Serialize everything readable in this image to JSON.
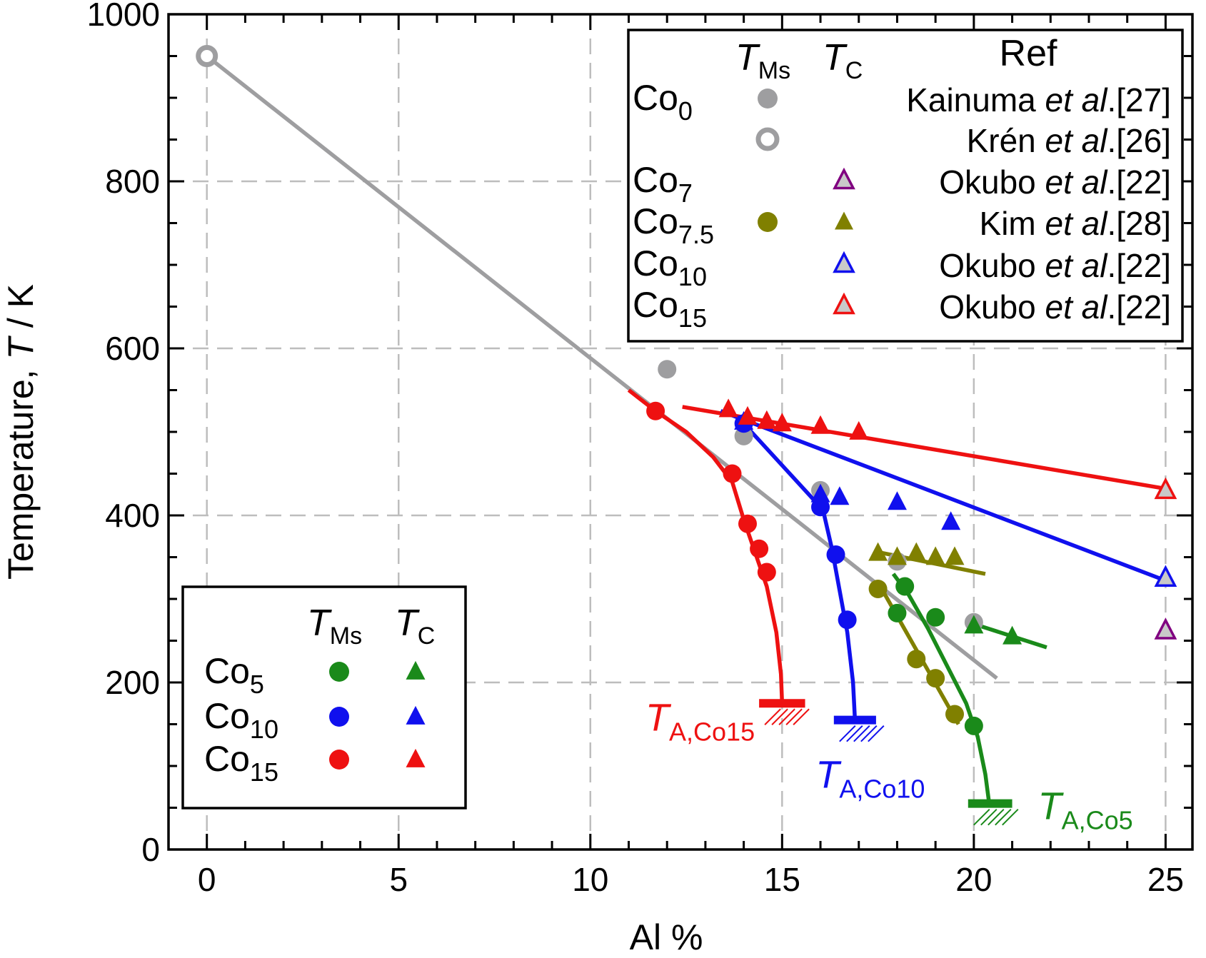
{
  "chart_data": {
    "type": "scatter",
    "xlabel": "Al %",
    "ylabel": "Temperature, T / K",
    "ylabel_prefix": "Temperature, ",
    "ylabel_var": "T",
    "ylabel_suffix": " / K",
    "xlim": [
      -1,
      25.7
    ],
    "ylim": [
      0,
      1000
    ],
    "x_ticks": [
      0,
      5,
      10,
      15,
      20,
      25
    ],
    "x_tick_labels": [
      "0",
      "5",
      "10",
      "15",
      "20",
      "25"
    ],
    "y_ticks": [
      0,
      200,
      400,
      600,
      800,
      1000
    ],
    "y_tick_labels": [
      "0",
      "200",
      "400",
      "600",
      "800",
      "1000"
    ],
    "grid": true,
    "colors": {
      "gray": "#9e9ea0",
      "olive": "#808000",
      "green": "#1a8a1a",
      "blue": "#1010ee",
      "red": "#ee1111",
      "purple": "#800080"
    },
    "lines": [
      {
        "name": "Co0 fit",
        "color": "gray",
        "x": [
          0,
          20.6
        ],
        "y": [
          950,
          205
        ]
      },
      {
        "name": "Co15 TC fit",
        "color": "red",
        "x": [
          12.4,
          25
        ],
        "y": [
          530,
          432
        ]
      },
      {
        "name": "Co10 TC fit",
        "color": "blue",
        "x": [
          13.4,
          25
        ],
        "y": [
          525,
          322
        ]
      },
      {
        "name": "Co7.5 TC fit",
        "color": "olive",
        "x": [
          17.4,
          20.3
        ],
        "y": [
          357,
          330
        ]
      },
      {
        "name": "Co5 TC fit",
        "color": "green",
        "x": [
          20,
          21.9
        ],
        "y": [
          270,
          242
        ]
      },
      {
        "name": "Co7.5 TMs fit",
        "color": "olive",
        "x": [
          17.5,
          19.6
        ],
        "y": [
          320,
          150
        ]
      },
      {
        "name": "Co15 TMs curve",
        "color": "red",
        "x": [
          11,
          11.7,
          12.5,
          13.2,
          13.7,
          14.0,
          14.3,
          14.6,
          14.85,
          14.97,
          15.0
        ],
        "y": [
          550,
          525,
          500,
          470,
          440,
          395,
          355,
          315,
          260,
          210,
          175
        ]
      },
      {
        "name": "Co10 TMs curve",
        "color": "blue",
        "x": [
          14.0,
          15.0,
          15.8,
          16.1,
          16.3,
          16.5,
          16.7,
          16.85,
          16.9
        ],
        "y": [
          510,
          460,
          420,
          400,
          360,
          310,
          260,
          200,
          155
        ]
      },
      {
        "name": "Co5 TMs curve",
        "color": "green",
        "x": [
          17.9,
          18.3,
          18.8,
          19.3,
          19.8,
          20.1,
          20.3,
          20.4
        ],
        "y": [
          330,
          305,
          265,
          220,
          175,
          135,
          90,
          55
        ]
      }
    ],
    "series": [
      {
        "name": "Co0 TMs Kainuma",
        "marker": "circle",
        "fill": true,
        "color": "gray",
        "x": [
          12,
          14,
          16,
          18,
          20
        ],
        "y": [
          575,
          495,
          430,
          345,
          272
        ]
      },
      {
        "name": "Co0 TMs Kren",
        "marker": "circle",
        "fill": false,
        "color": "gray",
        "x": [
          0
        ],
        "y": [
          950
        ]
      },
      {
        "name": "Co7 TC Okubo",
        "marker": "triangle",
        "fill": false,
        "color": "purple",
        "x": [
          25
        ],
        "y": [
          262
        ]
      },
      {
        "name": "Co7.5 TMs Kim",
        "marker": "circle",
        "fill": true,
        "color": "olive",
        "x": [
          17.5,
          18.5,
          19,
          19.5
        ],
        "y": [
          312,
          228,
          205,
          162
        ]
      },
      {
        "name": "Co7.5 TC Kim",
        "marker": "triangle",
        "fill": true,
        "color": "olive",
        "x": [
          17.5,
          18,
          18.5,
          19,
          19.5
        ],
        "y": [
          355,
          350,
          355,
          350,
          350
        ]
      },
      {
        "name": "Co10 TC Okubo",
        "marker": "triangle",
        "fill": false,
        "color": "blue",
        "x": [
          25
        ],
        "y": [
          325
        ]
      },
      {
        "name": "Co15 TC Okubo",
        "marker": "triangle",
        "fill": false,
        "color": "red",
        "x": [
          25
        ],
        "y": [
          430
        ]
      },
      {
        "name": "Co5 TMs",
        "marker": "circle",
        "fill": true,
        "color": "green",
        "x": [
          18,
          18.2,
          19,
          20
        ],
        "y": [
          283,
          315,
          278,
          148
        ]
      },
      {
        "name": "Co5 TC",
        "marker": "triangle",
        "fill": true,
        "color": "green",
        "x": [
          20,
          21
        ],
        "y": [
          268,
          255
        ]
      },
      {
        "name": "Co10 TMs",
        "marker": "circle",
        "fill": true,
        "color": "blue",
        "x": [
          14,
          16,
          16.4,
          16.7
        ],
        "y": [
          510,
          410,
          353,
          275
        ]
      },
      {
        "name": "Co10 TC",
        "marker": "triangle",
        "fill": true,
        "color": "blue",
        "x": [
          14,
          16,
          16.5,
          18,
          19.4
        ],
        "y": [
          512,
          425,
          422,
          416,
          392
        ]
      },
      {
        "name": "Co15 TMs",
        "marker": "circle",
        "fill": true,
        "color": "red",
        "x": [
          11.7,
          13.7,
          14.1,
          14.4,
          14.6
        ],
        "y": [
          525,
          450,
          390,
          360,
          332
        ]
      },
      {
        "name": "Co15 TC",
        "marker": "triangle",
        "fill": true,
        "color": "red",
        "x": [
          13.6,
          14.1,
          14.6,
          15,
          16,
          17
        ],
        "y": [
          527,
          518,
          513,
          510,
          507,
          500
        ]
      }
    ],
    "ta_markers": [
      {
        "name": "T_A,Co15",
        "color": "red",
        "x": 15.0,
        "y": 175,
        "x0": 14.4,
        "x1": 15.6,
        "var": "T",
        "sub": "A,Co15",
        "label_side": "left"
      },
      {
        "name": "T_A,Co10",
        "color": "blue",
        "x": 16.9,
        "y": 155,
        "x0": 16.35,
        "x1": 17.45,
        "var": "T",
        "sub": "A,Co10",
        "label_side": "below"
      },
      {
        "name": "T_A,Co5",
        "color": "green",
        "x": 20.4,
        "y": 55,
        "x0": 19.85,
        "x1": 21.0,
        "var": "T",
        "sub": "A,Co5",
        "label_side": "right"
      }
    ],
    "legend_right": {
      "position": "top-right",
      "headers": {
        "t_ms_var": "T",
        "t_ms_sub": "Ms",
        "t_c_var": "T",
        "t_c_sub": "C",
        "ref": "Ref"
      },
      "rows": [
        {
          "alloy_base": "Co",
          "alloy_sub": "0",
          "ms_marker": "circle",
          "ms_fill": true,
          "ms_color": "gray",
          "tc_marker": "",
          "tc_color": "",
          "ref_pre": "Kainuma ",
          "ref_em": "et al",
          "ref_post": ".[27]"
        },
        {
          "alloy_base": "",
          "alloy_sub": "",
          "ms_marker": "circle",
          "ms_fill": false,
          "ms_color": "gray",
          "tc_marker": "",
          "tc_color": "",
          "ref_pre": "Krén ",
          "ref_em": "et al",
          "ref_post": ".[26]"
        },
        {
          "alloy_base": "Co",
          "alloy_sub": "7",
          "ms_marker": "",
          "ms_fill": false,
          "ms_color": "",
          "tc_marker": "triangle",
          "tc_fill": false,
          "tc_color": "purple",
          "ref_pre": "Okubo ",
          "ref_em": "et al",
          "ref_post": ".[22]"
        },
        {
          "alloy_base": "Co",
          "alloy_sub": "7.5",
          "ms_marker": "circle",
          "ms_fill": true,
          "ms_color": "olive",
          "tc_marker": "triangle",
          "tc_fill": true,
          "tc_color": "olive",
          "ref_pre": "Kim ",
          "ref_em": "et al",
          "ref_post": ".[28]"
        },
        {
          "alloy_base": "Co",
          "alloy_sub": "10",
          "ms_marker": "",
          "ms_fill": false,
          "ms_color": "",
          "tc_marker": "triangle",
          "tc_fill": false,
          "tc_color": "blue",
          "ref_pre": "Okubo ",
          "ref_em": "et al",
          "ref_post": ".[22]"
        },
        {
          "alloy_base": "Co",
          "alloy_sub": "15",
          "ms_marker": "",
          "ms_fill": false,
          "ms_color": "",
          "tc_marker": "triangle",
          "tc_fill": false,
          "tc_color": "red",
          "ref_pre": "Okubo ",
          "ref_em": "et al",
          "ref_post": ".[22]"
        }
      ]
    },
    "legend_left": {
      "position": "bottom-left",
      "headers": {
        "t_ms_var": "T",
        "t_ms_sub": "Ms",
        "t_c_var": "T",
        "t_c_sub": "C"
      },
      "rows": [
        {
          "alloy_base": "Co",
          "alloy_sub": "5",
          "color": "green"
        },
        {
          "alloy_base": "Co",
          "alloy_sub": "10",
          "color": "blue"
        },
        {
          "alloy_base": "Co",
          "alloy_sub": "15",
          "color": "red"
        }
      ]
    }
  }
}
